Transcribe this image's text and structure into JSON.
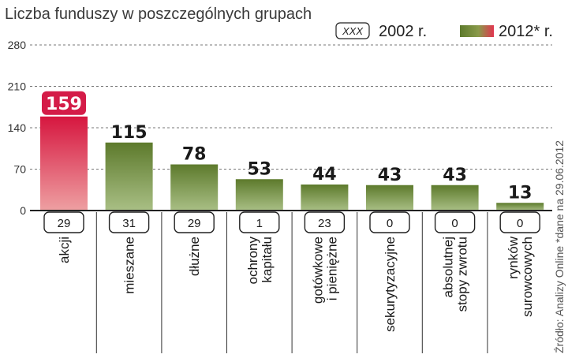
{
  "chart_data": {
    "type": "bar",
    "title": "Liczba funduszy w poszczególnych grupach",
    "categories": [
      [
        "akcji"
      ],
      [
        "mieszane"
      ],
      [
        "dłużne"
      ],
      [
        "ochrony",
        "kapitału"
      ],
      [
        "gotówkowe",
        "i pieniężne"
      ],
      [
        "sekurytyzacyjne"
      ],
      [
        "absolutnej",
        "stopy zwrotu"
      ],
      [
        "rynków",
        "surowcowych"
      ]
    ],
    "series": [
      {
        "name": "2012* r.",
        "values": [
          159,
          115,
          78,
          53,
          44,
          43,
          43,
          13
        ]
      },
      {
        "name": "2002 r.",
        "values": [
          29,
          31,
          29,
          1,
          23,
          0,
          0,
          0
        ]
      }
    ],
    "legend": {
      "box_text": "XXX",
      "label_2002": "2002 r.",
      "label_2012": "2012* r.",
      "placement": "top-right"
    },
    "yticks": [
      0,
      70,
      140,
      210,
      280
    ],
    "ylim": [
      0,
      280
    ],
    "grid": true,
    "source": "Źródło: Analizy Online *dane na 29.06.2012",
    "colors": {
      "highlight_top": "#d6163f",
      "highlight_bottom": "#eea0a2",
      "bar_top": "#5d7a2c",
      "bar_bottom": "#a9bf85",
      "label_bg": "#d41c48"
    }
  }
}
